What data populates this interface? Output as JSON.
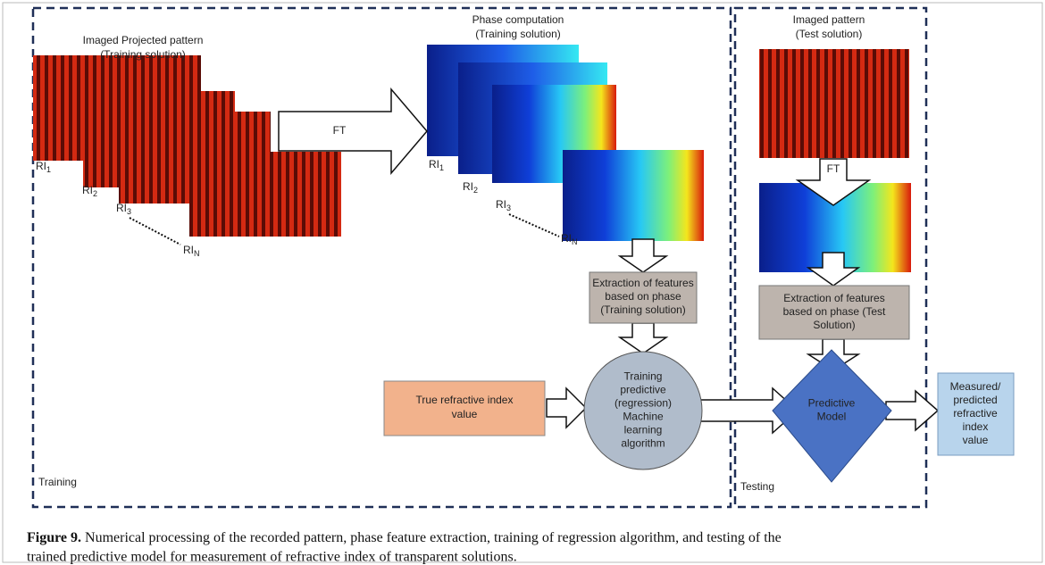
{
  "training": {
    "label": "Training",
    "projected_title": [
      "Imaged Projected pattern",
      "(Training solution)"
    ],
    "projected_labels": [
      {
        "base": "RI",
        "sub": "1"
      },
      {
        "base": "RI",
        "sub": "2"
      },
      {
        "base": "RI",
        "sub": "3"
      },
      {
        "base": "RI",
        "sub": "N"
      }
    ],
    "transform_label": "FT",
    "phase_title": [
      "Phase computation",
      "(Training solution)"
    ],
    "phase_labels": [
      {
        "base": "RI",
        "sub": "1"
      },
      {
        "base": "RI",
        "sub": "2"
      },
      {
        "base": "RI",
        "sub": "3"
      },
      {
        "base": "RI",
        "sub": "N"
      }
    ],
    "feature_box": [
      "Extraction of features",
      "based on phase",
      "(Training solution)"
    ],
    "true_value_box": [
      "True refractive index",
      "value"
    ],
    "algorithm_node": [
      "Training",
      "predictive",
      "(regression)",
      "Machine",
      "learning",
      "algorithm"
    ]
  },
  "testing": {
    "label": "Testing",
    "pattern_title": [
      "Imaged pattern",
      "(Test solution)"
    ],
    "transform_label": "FT",
    "feature_box": [
      "Extraction of features",
      "based on phase (Test",
      "Solution)"
    ],
    "model_node": [
      "Predictive",
      "Model"
    ]
  },
  "output_box": [
    "Measured/",
    "predicted",
    "refractive",
    "index",
    "value"
  ],
  "caption": {
    "label": "Figure 9.",
    "lines": [
      " Numerical processing of the recorded pattern, phase feature extraction, training of regression algorithm, and testing of the",
      "trained predictive model for measurement of refractive index of transparent solutions."
    ]
  }
}
